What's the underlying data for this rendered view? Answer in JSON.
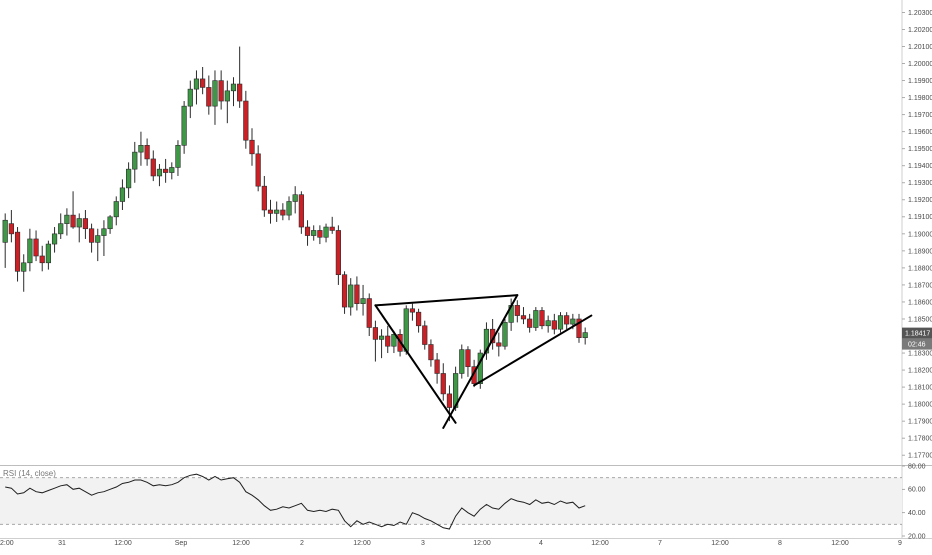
{
  "chart_data": {
    "type": "candlestick",
    "price_axis": {
      "ticks": [
        "1.20300",
        "1.20200",
        "1.20100",
        "1.20000",
        "1.19900",
        "1.19800",
        "1.19700",
        "1.19600",
        "1.19500",
        "1.19400",
        "1.19300",
        "1.19200",
        "1.19100",
        "1.19000",
        "1.18900",
        "1.18800",
        "1.18700",
        "1.18600",
        "1.18500",
        "1.18400",
        "1.18300",
        "1.18200",
        "1.18100",
        "1.18000",
        "1.17900",
        "1.17800",
        "1.17700"
      ],
      "range": [
        1.1766,
        1.2035
      ]
    },
    "time_axis": {
      "labels": [
        "2:00",
        "31",
        "12:00",
        "Sep",
        "12:00",
        "2",
        "12:00",
        "3",
        "12:00",
        "4",
        "12:00",
        "7",
        "12:00",
        "8",
        "12:00",
        "9"
      ]
    },
    "current_price": {
      "value": "1.18417",
      "countdown": "02:46",
      "color": "#555555"
    },
    "candles": [
      {
        "o": 1.1895,
        "h": 1.1912,
        "l": 1.188,
        "c": 1.1908
      },
      {
        "o": 1.1906,
        "h": 1.1914,
        "l": 1.1895,
        "c": 1.19
      },
      {
        "o": 1.1901,
        "h": 1.1904,
        "l": 1.1872,
        "c": 1.1878
      },
      {
        "o": 1.1878,
        "h": 1.1888,
        "l": 1.1866,
        "c": 1.1883
      },
      {
        "o": 1.1883,
        "h": 1.1903,
        "l": 1.1878,
        "c": 1.1897
      },
      {
        "o": 1.1897,
        "h": 1.1902,
        "l": 1.1884,
        "c": 1.1887
      },
      {
        "o": 1.1887,
        "h": 1.1893,
        "l": 1.1878,
        "c": 1.1883
      },
      {
        "o": 1.1883,
        "h": 1.1896,
        "l": 1.1879,
        "c": 1.1894
      },
      {
        "o": 1.1894,
        "h": 1.1904,
        "l": 1.1889,
        "c": 1.19
      },
      {
        "o": 1.19,
        "h": 1.1912,
        "l": 1.1897,
        "c": 1.1906
      },
      {
        "o": 1.1906,
        "h": 1.1915,
        "l": 1.1899,
        "c": 1.1911
      },
      {
        "o": 1.1911,
        "h": 1.1925,
        "l": 1.1903,
        "c": 1.1904
      },
      {
        "o": 1.1904,
        "h": 1.1912,
        "l": 1.1895,
        "c": 1.1909
      },
      {
        "o": 1.1909,
        "h": 1.1914,
        "l": 1.1897,
        "c": 1.1903
      },
      {
        "o": 1.1903,
        "h": 1.1906,
        "l": 1.1889,
        "c": 1.1895
      },
      {
        "o": 1.1895,
        "h": 1.1903,
        "l": 1.1884,
        "c": 1.1899
      },
      {
        "o": 1.1899,
        "h": 1.1908,
        "l": 1.1887,
        "c": 1.1903
      },
      {
        "o": 1.1903,
        "h": 1.1911,
        "l": 1.19,
        "c": 1.191
      },
      {
        "o": 1.191,
        "h": 1.1922,
        "l": 1.1905,
        "c": 1.1919
      },
      {
        "o": 1.1919,
        "h": 1.1932,
        "l": 1.1914,
        "c": 1.1927
      },
      {
        "o": 1.1927,
        "h": 1.1942,
        "l": 1.1921,
        "c": 1.1938
      },
      {
        "o": 1.1938,
        "h": 1.1954,
        "l": 1.193,
        "c": 1.1948
      },
      {
        "o": 1.1948,
        "h": 1.196,
        "l": 1.194,
        "c": 1.1952
      },
      {
        "o": 1.1952,
        "h": 1.1956,
        "l": 1.194,
        "c": 1.1944
      },
      {
        "o": 1.1944,
        "h": 1.1949,
        "l": 1.1931,
        "c": 1.1934
      },
      {
        "o": 1.1934,
        "h": 1.1941,
        "l": 1.1928,
        "c": 1.1938
      },
      {
        "o": 1.1938,
        "h": 1.1944,
        "l": 1.193,
        "c": 1.1936
      },
      {
        "o": 1.1936,
        "h": 1.1942,
        "l": 1.1932,
        "c": 1.1939
      },
      {
        "o": 1.1939,
        "h": 1.1955,
        "l": 1.1934,
        "c": 1.1952
      },
      {
        "o": 1.1952,
        "h": 1.1978,
        "l": 1.1947,
        "c": 1.1975
      },
      {
        "o": 1.1975,
        "h": 1.199,
        "l": 1.1968,
        "c": 1.1985
      },
      {
        "o": 1.1985,
        "h": 1.1996,
        "l": 1.1976,
        "c": 1.1991
      },
      {
        "o": 1.1991,
        "h": 1.1998,
        "l": 1.1982,
        "c": 1.1986
      },
      {
        "o": 1.1986,
        "h": 1.1993,
        "l": 1.197,
        "c": 1.1975
      },
      {
        "o": 1.1975,
        "h": 1.1996,
        "l": 1.1964,
        "c": 1.199
      },
      {
        "o": 1.199,
        "h": 1.1996,
        "l": 1.1973,
        "c": 1.1978
      },
      {
        "o": 1.1978,
        "h": 1.199,
        "l": 1.1965,
        "c": 1.1984
      },
      {
        "o": 1.1984,
        "h": 1.1992,
        "l": 1.1975,
        "c": 1.1988
      },
      {
        "o": 1.1988,
        "h": 1.201,
        "l": 1.1974,
        "c": 1.1978
      },
      {
        "o": 1.1978,
        "h": 1.1984,
        "l": 1.195,
        "c": 1.1955
      },
      {
        "o": 1.1955,
        "h": 1.1962,
        "l": 1.194,
        "c": 1.1947
      },
      {
        "o": 1.1947,
        "h": 1.1952,
        "l": 1.1925,
        "c": 1.1928
      },
      {
        "o": 1.1928,
        "h": 1.1934,
        "l": 1.191,
        "c": 1.1914
      },
      {
        "o": 1.1914,
        "h": 1.192,
        "l": 1.1906,
        "c": 1.1912
      },
      {
        "o": 1.1912,
        "h": 1.1919,
        "l": 1.1907,
        "c": 1.1914
      },
      {
        "o": 1.1914,
        "h": 1.1918,
        "l": 1.1908,
        "c": 1.1911
      },
      {
        "o": 1.1911,
        "h": 1.1922,
        "l": 1.1908,
        "c": 1.1919
      },
      {
        "o": 1.1919,
        "h": 1.1928,
        "l": 1.1912,
        "c": 1.1923
      },
      {
        "o": 1.1923,
        "h": 1.1925,
        "l": 1.19,
        "c": 1.1904
      },
      {
        "o": 1.1904,
        "h": 1.1908,
        "l": 1.1893,
        "c": 1.1899
      },
      {
        "o": 1.1899,
        "h": 1.1905,
        "l": 1.1896,
        "c": 1.1902
      },
      {
        "o": 1.1902,
        "h": 1.1905,
        "l": 1.1894,
        "c": 1.1898
      },
      {
        "o": 1.1898,
        "h": 1.1906,
        "l": 1.1895,
        "c": 1.1904
      },
      {
        "o": 1.1904,
        "h": 1.191,
        "l": 1.19,
        "c": 1.1902
      },
      {
        "o": 1.1902,
        "h": 1.1905,
        "l": 1.187,
        "c": 1.1876
      },
      {
        "o": 1.1876,
        "h": 1.1878,
        "l": 1.1853,
        "c": 1.1857
      },
      {
        "o": 1.1857,
        "h": 1.1874,
        "l": 1.1852,
        "c": 1.187
      },
      {
        "o": 1.187,
        "h": 1.1875,
        "l": 1.1855,
        "c": 1.1859
      },
      {
        "o": 1.1859,
        "h": 1.187,
        "l": 1.1852,
        "c": 1.1862
      },
      {
        "o": 1.1862,
        "h": 1.1865,
        "l": 1.184,
        "c": 1.1845
      },
      {
        "o": 1.1845,
        "h": 1.1849,
        "l": 1.1825,
        "c": 1.1838
      },
      {
        "o": 1.1838,
        "h": 1.1844,
        "l": 1.1827,
        "c": 1.184
      },
      {
        "o": 1.184,
        "h": 1.1846,
        "l": 1.183,
        "c": 1.1834
      },
      {
        "o": 1.1834,
        "h": 1.1843,
        "l": 1.183,
        "c": 1.1841
      },
      {
        "o": 1.1841,
        "h": 1.1844,
        "l": 1.1828,
        "c": 1.1831
      },
      {
        "o": 1.1831,
        "h": 1.1858,
        "l": 1.1829,
        "c": 1.1856
      },
      {
        "o": 1.1856,
        "h": 1.1859,
        "l": 1.1849,
        "c": 1.1854
      },
      {
        "o": 1.1854,
        "h": 1.1856,
        "l": 1.1842,
        "c": 1.1846
      },
      {
        "o": 1.1846,
        "h": 1.1849,
        "l": 1.1832,
        "c": 1.1835
      },
      {
        "o": 1.1835,
        "h": 1.1838,
        "l": 1.1822,
        "c": 1.1826
      },
      {
        "o": 1.1826,
        "h": 1.183,
        "l": 1.1812,
        "c": 1.1818
      },
      {
        "o": 1.1818,
        "h": 1.1824,
        "l": 1.1802,
        "c": 1.1806
      },
      {
        "o": 1.1806,
        "h": 1.1811,
        "l": 1.179,
        "c": 1.1798
      },
      {
        "o": 1.1798,
        "h": 1.1822,
        "l": 1.1796,
        "c": 1.1818
      },
      {
        "o": 1.1818,
        "h": 1.1835,
        "l": 1.1815,
        "c": 1.1832
      },
      {
        "o": 1.1832,
        "h": 1.1834,
        "l": 1.1816,
        "c": 1.1822
      },
      {
        "o": 1.1822,
        "h": 1.1826,
        "l": 1.181,
        "c": 1.1812
      },
      {
        "o": 1.1812,
        "h": 1.1832,
        "l": 1.1809,
        "c": 1.183
      },
      {
        "o": 1.183,
        "h": 1.1848,
        "l": 1.1826,
        "c": 1.1844
      },
      {
        "o": 1.1844,
        "h": 1.185,
        "l": 1.1832,
        "c": 1.1836
      },
      {
        "o": 1.1836,
        "h": 1.1842,
        "l": 1.1828,
        "c": 1.1834
      },
      {
        "o": 1.1834,
        "h": 1.185,
        "l": 1.1832,
        "c": 1.1848
      },
      {
        "o": 1.1848,
        "h": 1.1862,
        "l": 1.1843,
        "c": 1.1858
      },
      {
        "o": 1.1858,
        "h": 1.1861,
        "l": 1.1848,
        "c": 1.1852
      },
      {
        "o": 1.1852,
        "h": 1.1857,
        "l": 1.1847,
        "c": 1.185
      },
      {
        "o": 1.185,
        "h": 1.1853,
        "l": 1.1842,
        "c": 1.1845
      },
      {
        "o": 1.1845,
        "h": 1.1857,
        "l": 1.1843,
        "c": 1.1855
      },
      {
        "o": 1.1855,
        "h": 1.1857,
        "l": 1.1844,
        "c": 1.1846
      },
      {
        "o": 1.1846,
        "h": 1.1852,
        "l": 1.1842,
        "c": 1.1849
      },
      {
        "o": 1.1849,
        "h": 1.1853,
        "l": 1.1841,
        "c": 1.1844
      },
      {
        "o": 1.1844,
        "h": 1.1854,
        "l": 1.1842,
        "c": 1.1852
      },
      {
        "o": 1.1852,
        "h": 1.1854,
        "l": 1.1844,
        "c": 1.1847
      },
      {
        "o": 1.1847,
        "h": 1.1853,
        "l": 1.1844,
        "c": 1.185
      },
      {
        "o": 1.185,
        "h": 1.1853,
        "l": 1.1836,
        "c": 1.1839
      },
      {
        "o": 1.1839,
        "h": 1.1845,
        "l": 1.1835,
        "c": 1.1842
      }
    ],
    "trendlines": [
      {
        "from": [
          60,
          1.1858
        ],
        "to": [
          83,
          1.1864
        ]
      },
      {
        "from": [
          60,
          1.1858
        ],
        "to": [
          73,
          1.1789
        ]
      },
      {
        "from": [
          83,
          1.1864
        ],
        "to": [
          71,
          1.1786
        ]
      },
      {
        "from": [
          76,
          1.1811
        ],
        "to": [
          95,
          1.1852
        ]
      }
    ],
    "rsi": {
      "label": "RSI (14, close)",
      "period": 14,
      "upper": 70,
      "lower": 30,
      "range": [
        20,
        80
      ],
      "ticks": [
        "80.00",
        "60.00",
        "40.00",
        "20.00"
      ],
      "values": [
        62,
        61,
        56,
        57,
        61,
        58,
        57,
        59,
        61,
        63,
        64,
        60,
        61,
        58,
        55,
        57,
        58,
        60,
        62,
        65,
        66,
        68,
        68,
        66,
        63,
        64,
        63,
        64,
        66,
        70,
        72,
        73,
        71,
        68,
        71,
        68,
        69,
        70,
        66,
        58,
        55,
        51,
        46,
        42,
        43,
        45,
        44,
        46,
        48,
        42,
        41,
        42,
        41,
        43,
        42,
        33,
        28,
        33,
        30,
        32,
        30,
        28,
        30,
        29,
        32,
        30,
        40,
        38,
        35,
        33,
        30,
        27,
        26,
        37,
        44,
        40,
        37,
        43,
        47,
        44,
        43,
        48,
        52,
        50,
        49,
        47,
        51,
        48,
        49,
        47,
        50,
        48,
        49,
        44,
        46
      ]
    },
    "colors": {
      "up": "#3e9846",
      "down": "#cc2027",
      "wick": "#2b2b2b",
      "trendline": "#000000",
      "rsi_line": "#1f1f1f",
      "rsi_band": "#f2f2f2",
      "grid": "#dedede"
    }
  }
}
